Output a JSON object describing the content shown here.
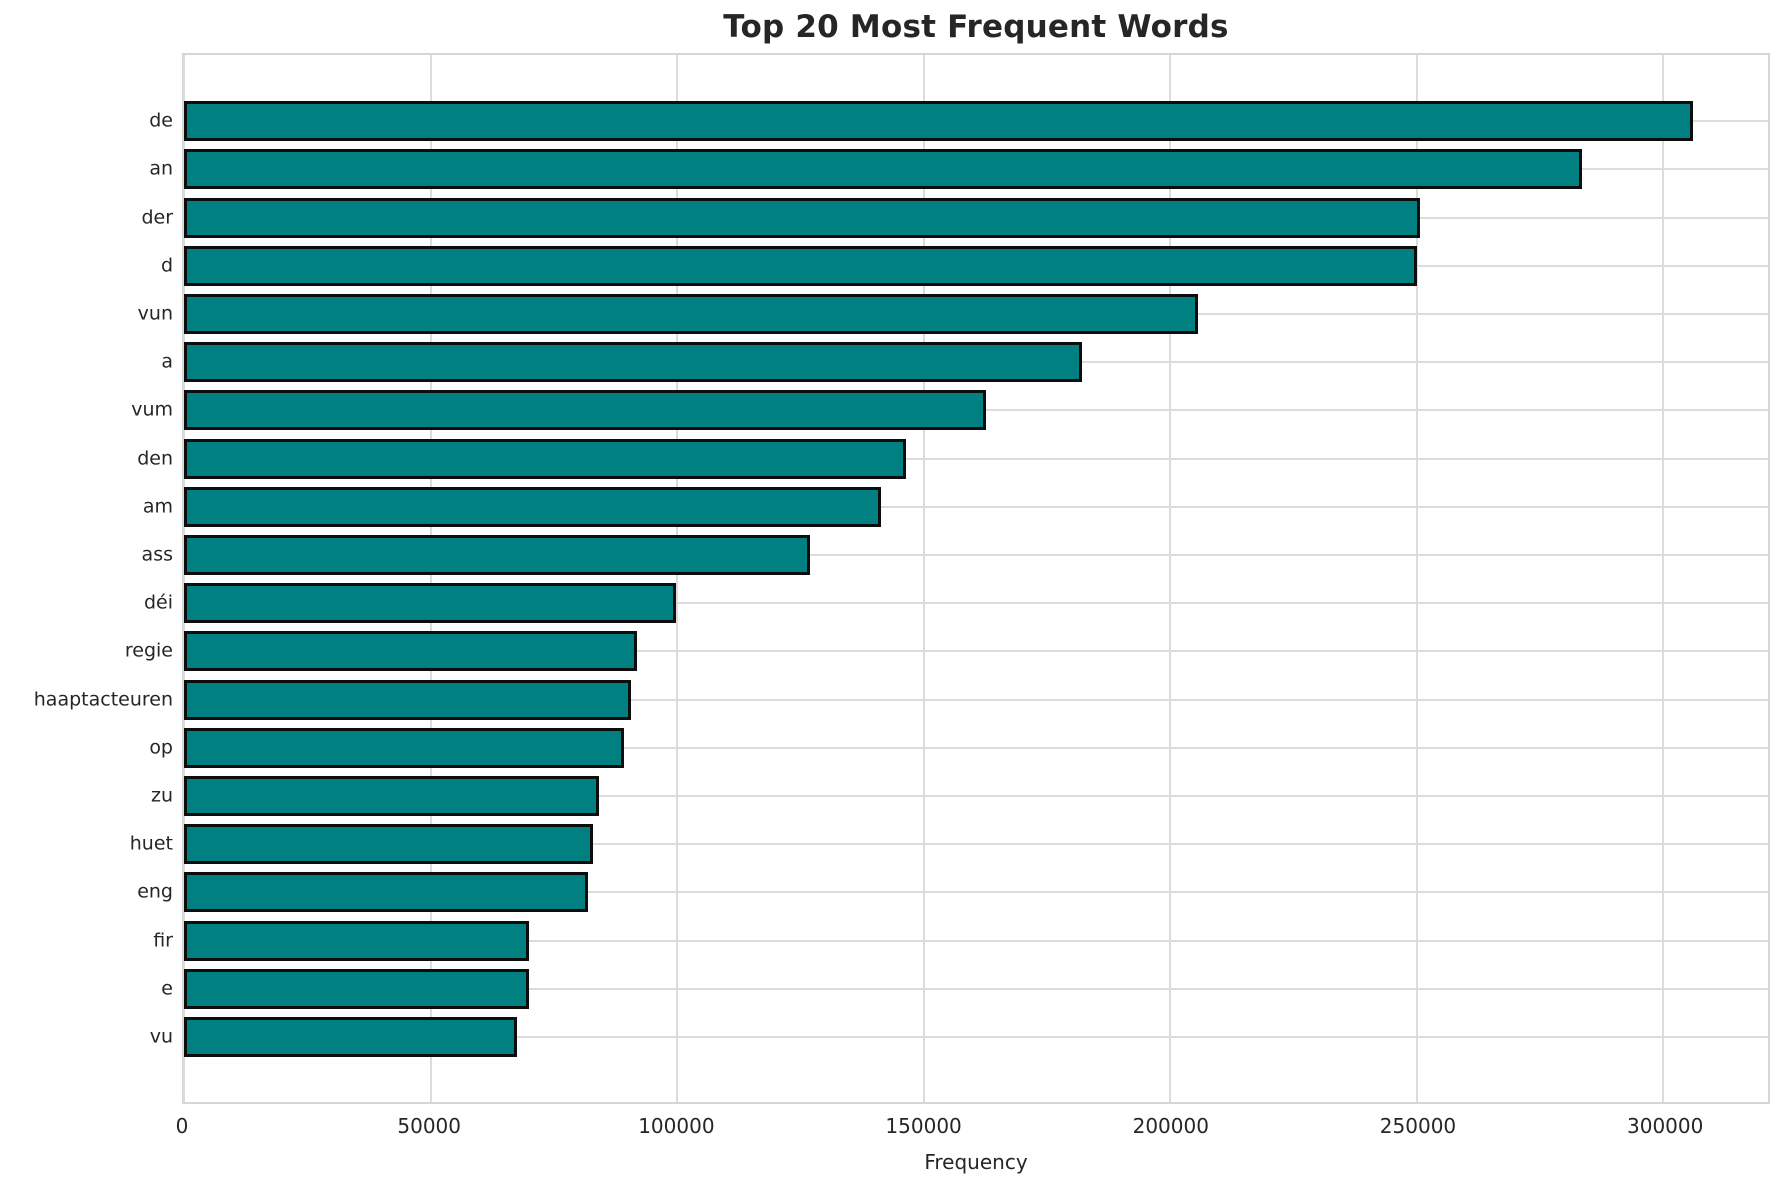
{
  "title": "Top 20 Most Frequent Words",
  "chart_data": {
    "type": "bar",
    "orientation": "horizontal",
    "title": "Top 20 Most Frequent Words",
    "xlabel": "Frequency",
    "ylabel": "",
    "categories": [
      "de",
      "an",
      "der",
      "d",
      "vun",
      "a",
      "vum",
      "den",
      "am",
      "ass",
      "déi",
      "regie",
      "haaptacteuren",
      "op",
      "zu",
      "huet",
      "eng",
      "fir",
      "e",
      "vu"
    ],
    "values": [
      305900,
      283400,
      250600,
      250000,
      205600,
      182100,
      162700,
      146500,
      141400,
      127000,
      99800,
      91900,
      90700,
      89300,
      84100,
      83000,
      82000,
      70000,
      69900,
      67500
    ],
    "xlim": [
      0,
      321200
    ],
    "xticks": [
      0,
      50000,
      100000,
      150000,
      200000,
      250000,
      300000
    ],
    "grid": true,
    "legend": "none",
    "bar_color": "#008080",
    "bar_edge_color": "#0d0d0d",
    "gridline_color": "#dcdcdc",
    "background_color": "#ffffff",
    "text_color": "#262626"
  }
}
